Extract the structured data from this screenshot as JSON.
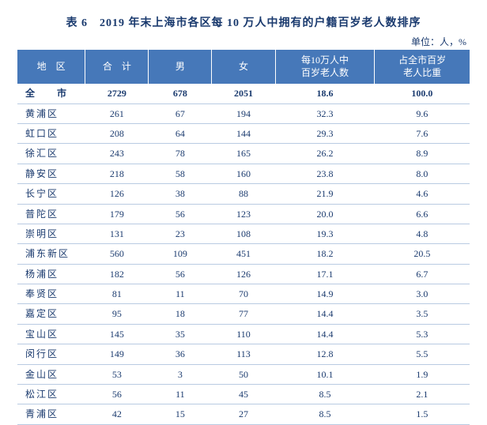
{
  "title": "表 6　2019 年末上海市各区每 10 万人中拥有的户籍百岁老人数排序",
  "unit": "单位：人，%",
  "columns": {
    "region": "地　区",
    "total": "合　计",
    "male": "男",
    "female": "女",
    "per100k": "每10万人中\n百岁老人数",
    "percent": "占全市百岁\n老人比重"
  },
  "total_row": {
    "region": "全　市",
    "total": "2729",
    "male": "678",
    "female": "2051",
    "per100k": "18.6",
    "percent": "100.0"
  },
  "rows": [
    {
      "region": "黄浦区",
      "total": "261",
      "male": "67",
      "female": "194",
      "per100k": "32.3",
      "percent": "9.6"
    },
    {
      "region": "虹口区",
      "total": "208",
      "male": "64",
      "female": "144",
      "per100k": "29.3",
      "percent": "7.6"
    },
    {
      "region": "徐汇区",
      "total": "243",
      "male": "78",
      "female": "165",
      "per100k": "26.2",
      "percent": "8.9"
    },
    {
      "region": "静安区",
      "total": "218",
      "male": "58",
      "female": "160",
      "per100k": "23.8",
      "percent": "8.0"
    },
    {
      "region": "长宁区",
      "total": "126",
      "male": "38",
      "female": "88",
      "per100k": "21.9",
      "percent": "4.6"
    },
    {
      "region": "普陀区",
      "total": "179",
      "male": "56",
      "female": "123",
      "per100k": "20.0",
      "percent": "6.6"
    },
    {
      "region": "崇明区",
      "total": "131",
      "male": "23",
      "female": "108",
      "per100k": "19.3",
      "percent": "4.8"
    },
    {
      "region": "浦东新区",
      "total": "560",
      "male": "109",
      "female": "451",
      "per100k": "18.2",
      "percent": "20.5"
    },
    {
      "region": "杨浦区",
      "total": "182",
      "male": "56",
      "female": "126",
      "per100k": "17.1",
      "percent": "6.7"
    },
    {
      "region": "奉贤区",
      "total": "81",
      "male": "11",
      "female": "70",
      "per100k": "14.9",
      "percent": "3.0"
    },
    {
      "region": "嘉定区",
      "total": "95",
      "male": "18",
      "female": "77",
      "per100k": "14.4",
      "percent": "3.5"
    },
    {
      "region": "宝山区",
      "total": "145",
      "male": "35",
      "female": "110",
      "per100k": "14.4",
      "percent": "5.3"
    },
    {
      "region": "闵行区",
      "total": "149",
      "male": "36",
      "female": "113",
      "per100k": "12.8",
      "percent": "5.5"
    },
    {
      "region": "金山区",
      "total": "53",
      "male": "3",
      "female": "50",
      "per100k": "10.1",
      "percent": "1.9"
    },
    {
      "region": "松江区",
      "total": "56",
      "male": "11",
      "female": "45",
      "per100k": "8.5",
      "percent": "2.1"
    },
    {
      "region": "青浦区",
      "total": "42",
      "male": "15",
      "female": "27",
      "per100k": "8.5",
      "percent": "1.5"
    }
  ],
  "colors": {
    "text": "#1a3a6e",
    "header_bg": "#4678b9",
    "header_fg": "#ffffff",
    "row_border": "#b9cbe2",
    "background": "#ffffff"
  }
}
